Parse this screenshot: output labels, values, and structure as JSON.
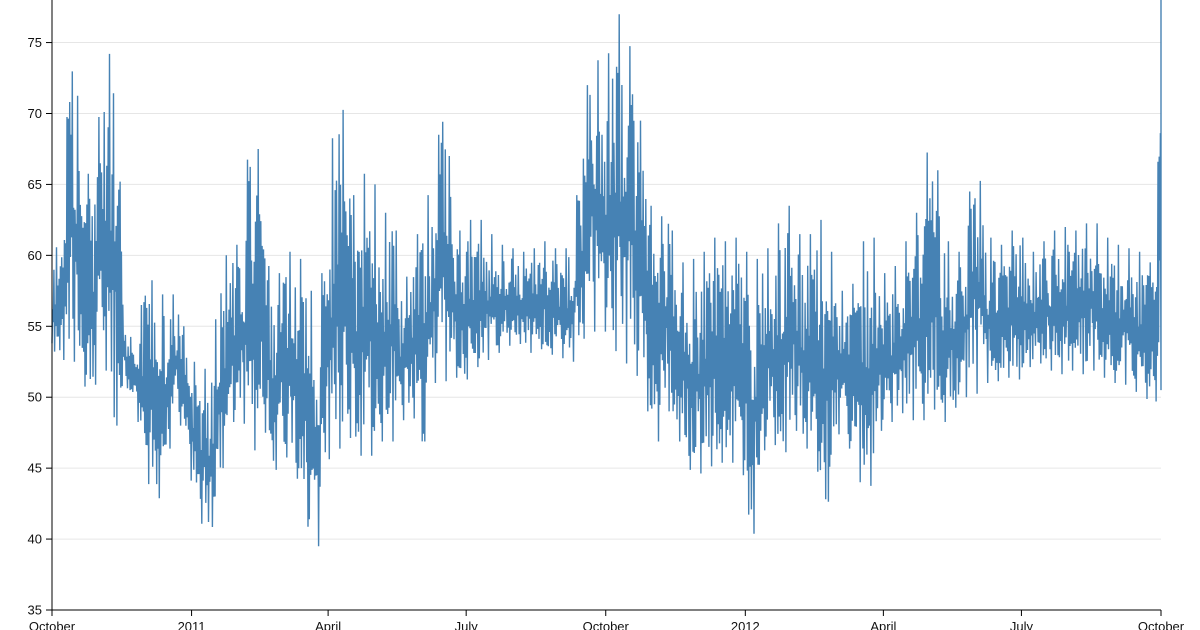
{
  "chart_data": {
    "type": "line",
    "title": "",
    "xlabel": "",
    "ylabel": "",
    "xlim": [
      "2010-10-01",
      "2012-10-01"
    ],
    "ylim": [
      35,
      78
    ],
    "grid": "horizontal",
    "legend": "none",
    "line_color": "#4682b4",
    "x_ticks": [
      {
        "date": "2010-10-01",
        "label": "October"
      },
      {
        "date": "2011-01-01",
        "label": "2011"
      },
      {
        "date": "2011-04-01",
        "label": "April"
      },
      {
        "date": "2011-07-01",
        "label": "July"
      },
      {
        "date": "2011-10-01",
        "label": "October"
      },
      {
        "date": "2012-01-01",
        "label": "2012"
      },
      {
        "date": "2012-04-01",
        "label": "April"
      },
      {
        "date": "2012-07-01",
        "label": "July"
      },
      {
        "date": "2012-10-01",
        "label": "October"
      }
    ],
    "y_ticks": [
      {
        "value": 35,
        "label": "35"
      },
      {
        "value": 40,
        "label": "40"
      },
      {
        "value": 45,
        "label": "45"
      },
      {
        "value": 50,
        "label": "50"
      },
      {
        "value": 55,
        "label": "55"
      },
      {
        "value": 60,
        "label": "60"
      },
      {
        "value": 65,
        "label": "65"
      },
      {
        "value": 70,
        "label": "70"
      },
      {
        "value": 75,
        "label": "75"
      }
    ],
    "series": [
      {
        "x": [
          "2010-10-01",
          "2010-10-07",
          "2010-10-14",
          "2010-10-21",
          "2010-10-28",
          "2010-11-04",
          "2010-11-11",
          "2010-11-18",
          "2010-11-25",
          "2010-12-02",
          "2010-12-09",
          "2010-12-16",
          "2010-12-23",
          "2010-12-30",
          "2011-01-06",
          "2011-01-13",
          "2011-01-20",
          "2011-01-27",
          "2011-02-03",
          "2011-02-10",
          "2011-02-17",
          "2011-02-24",
          "2011-03-03",
          "2011-03-10",
          "2011-03-17",
          "2011-03-24",
          "2011-03-31",
          "2011-04-07",
          "2011-04-14",
          "2011-04-21",
          "2011-04-28",
          "2011-05-05",
          "2011-05-12",
          "2011-05-19",
          "2011-05-26",
          "2011-06-02",
          "2011-06-09",
          "2011-06-16",
          "2011-06-23",
          "2011-06-30",
          "2011-07-07",
          "2011-07-14",
          "2011-07-21",
          "2011-07-28",
          "2011-08-04",
          "2011-08-11",
          "2011-08-18",
          "2011-08-25",
          "2011-09-01",
          "2011-09-08",
          "2011-09-15",
          "2011-09-22",
          "2011-09-29",
          "2011-10-06",
          "2011-10-13",
          "2011-10-20",
          "2011-10-27",
          "2011-11-03",
          "2011-11-10",
          "2011-11-17",
          "2011-11-24",
          "2011-12-01",
          "2011-12-08",
          "2011-12-15",
          "2011-12-22",
          "2011-12-29",
          "2012-01-05",
          "2012-01-12",
          "2012-01-19",
          "2012-01-26",
          "2012-02-02",
          "2012-02-09",
          "2012-02-16",
          "2012-02-23",
          "2012-03-01",
          "2012-03-08",
          "2012-03-15",
          "2012-03-22",
          "2012-03-29",
          "2012-04-05",
          "2012-04-12",
          "2012-04-19",
          "2012-04-26",
          "2012-05-03",
          "2012-05-10",
          "2012-05-17",
          "2012-05-24",
          "2012-05-31",
          "2012-06-07",
          "2012-06-14",
          "2012-06-21",
          "2012-06-28",
          "2012-07-05",
          "2012-07-12",
          "2012-07-19",
          "2012-07-26",
          "2012-08-02",
          "2012-08-09",
          "2012-08-16",
          "2012-08-23",
          "2012-08-30",
          "2012-09-06",
          "2012-09-13",
          "2012-09-20",
          "2012-09-27",
          "2012-10-01"
        ],
        "min": [
          53.5,
          52.5,
          53.0,
          51.0,
          50.0,
          53.5,
          47.0,
          51.0,
          49.5,
          44.5,
          42.0,
          45.5,
          49.0,
          45.0,
          41.5,
          39.8,
          44.0,
          48.0,
          49.0,
          45.5,
          48.5,
          44.5,
          46.0,
          45.0,
          42.0,
          37.5,
          45.5,
          46.0,
          47.5,
          46.0,
          45.5,
          47.0,
          46.5,
          48.0,
          49.5,
          45.5,
          51.0,
          51.0,
          51.5,
          51.0,
          52.0,
          52.5,
          53.0,
          53.5,
          54.0,
          53.0,
          53.5,
          53.0,
          53.0,
          52.0,
          54.0,
          54.5,
          55.0,
          53.5,
          52.5,
          52.0,
          50.0,
          46.0,
          49.5,
          47.5,
          45.0,
          44.5,
          45.0,
          45.5,
          45.0,
          46.5,
          38.5,
          46.0,
          47.0,
          45.5,
          48.0,
          46.5,
          46.0,
          41.0,
          47.5,
          47.0,
          44.5,
          42.5,
          47.5,
          48.0,
          49.0,
          48.5,
          48.0,
          49.5,
          48.0,
          49.0,
          50.0,
          50.0,
          51.0,
          51.0,
          51.5,
          51.0,
          52.0,
          52.5,
          52.0,
          51.5,
          52.0,
          51.5,
          52.0,
          51.5,
          51.0,
          51.0,
          50.5,
          50.0,
          49.5,
          50.5
        ],
        "max": [
          59.5,
          62.0,
          77.5,
          65.0,
          66.5,
          73.0,
          75.4,
          55.0,
          53.5,
          59.5,
          57.0,
          57.5,
          57.0,
          53.0,
          52.0,
          52.0,
          59.0,
          61.0,
          60.5,
          73.0,
          62.0,
          56.5,
          61.0,
          59.5,
          60.0,
          55.0,
          62.5,
          74.0,
          66.5,
          62.0,
          69.5,
          60.5,
          65.5,
          58.0,
          59.0,
          64.0,
          64.5,
          72.5,
          61.5,
          62.0,
          63.0,
          62.0,
          61.0,
          60.5,
          60.5,
          60.0,
          61.0,
          61.0,
          60.0,
          61.0,
          67.5,
          76.5,
          71.0,
          77.5,
          76.5,
          73.0,
          66.0,
          61.0,
          64.5,
          59.0,
          60.0,
          59.5,
          61.0,
          61.5,
          60.5,
          62.0,
          58.5,
          61.0,
          60.0,
          64.5,
          62.5,
          60.5,
          62.5,
          62.5,
          58.0,
          57.0,
          59.0,
          63.0,
          59.5,
          58.0,
          60.5,
          61.5,
          64.5,
          70.0,
          62.0,
          60.0,
          60.5,
          68.5,
          62.0,
          60.5,
          61.0,
          62.5,
          60.0,
          60.5,
          61.5,
          62.0,
          62.0,
          61.5,
          63.0,
          61.5,
          61.0,
          60.5,
          60.5,
          60.0,
          59.0,
          78.0
        ]
      }
    ]
  }
}
